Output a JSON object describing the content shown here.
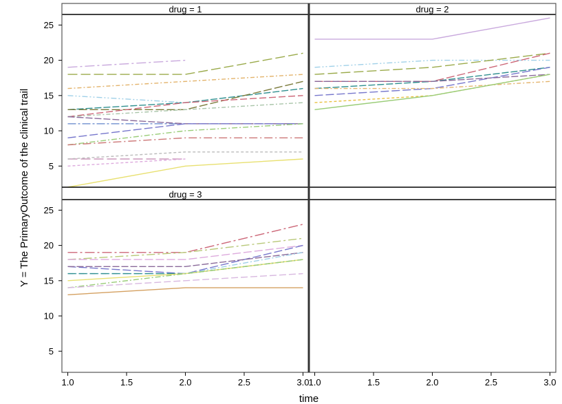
{
  "chart_data": {
    "type": "line",
    "xlabel": "time",
    "ylabel": "Y = The PrimaryOutcome of the clinical trail",
    "xlim": [
      0.95,
      3.05
    ],
    "ylim": [
      2,
      26.5
    ],
    "xticks": [
      "1.0",
      "1.5",
      "2.0",
      "2.5",
      "3.0"
    ],
    "xtick_values": [
      1.0,
      1.5,
      2.0,
      2.5,
      3.0
    ],
    "yticks": [
      "5",
      "10",
      "15",
      "20",
      "25"
    ],
    "ytick_values": [
      5,
      10,
      15,
      20,
      25
    ],
    "x": [
      1.0,
      2.0,
      3.0
    ],
    "panels": [
      {
        "strip": "drug = 1",
        "series": [
          {
            "color": "#c9a9dd",
            "dash": "14,4,3,4",
            "values": [
              19,
              20,
              null
            ]
          },
          {
            "color": "#9aaa4a",
            "dash": "14,5",
            "values": [
              18,
              18,
              21
            ]
          },
          {
            "color": "#e3b36b",
            "dash": "6,3,2,3",
            "values": [
              16,
              17,
              18
            ]
          },
          {
            "color": "#9fd0e8",
            "dash": "8,3,2,3,2,3",
            "values": [
              15,
              14,
              null
            ]
          },
          {
            "color": "#2f8f8f",
            "dash": "10,3",
            "values": [
              13,
              14,
              16
            ]
          },
          {
            "color": "#7a7a3a",
            "dash": "12,4",
            "values": [
              13,
              13,
              17
            ]
          },
          {
            "color": "#cc6677",
            "dash": "10,4",
            "values": [
              12,
              14,
              15
            ]
          },
          {
            "color": "#a8c4a8",
            "dash": "6,3,2,3",
            "values": [
              12,
              13,
              14
            ]
          },
          {
            "color": "#6f8fcf",
            "dash": "12,3,3,3",
            "values": [
              11,
              11,
              11
            ]
          },
          {
            "color": "#8a6a9a",
            "dash": "10,3",
            "values": [
              12,
              11,
              11
            ]
          },
          {
            "color": "#7777cc",
            "dash": "12,4",
            "values": [
              9,
              11,
              11
            ]
          },
          {
            "color": "#99cc77",
            "dash": "8,3,2,3",
            "values": [
              8,
              10,
              11
            ]
          },
          {
            "color": "#cc7777",
            "dash": "12,4,2,4",
            "values": [
              8,
              9,
              9
            ]
          },
          {
            "color": "#cc99bb",
            "dash": "14,5",
            "values": [
              6,
              6,
              null
            ]
          },
          {
            "color": "#bbbbbb",
            "dash": "4,3",
            "values": [
              6,
              7,
              7
            ]
          },
          {
            "color": "#ddaadd",
            "dash": "4,3",
            "values": [
              5,
              6,
              null
            ]
          },
          {
            "color": "#e8e070",
            "dash": "",
            "values": [
              2,
              5,
              6
            ]
          }
        ]
      },
      {
        "strip": "drug = 2",
        "series": [
          {
            "color": "#c9a9dd",
            "dash": "",
            "values": [
              23,
              23,
              26
            ]
          },
          {
            "color": "#9fd0e8",
            "dash": "8,3,2,3,2,3",
            "values": [
              19,
              20,
              20
            ]
          },
          {
            "color": "#9aaa4a",
            "dash": "14,5",
            "values": [
              18,
              19,
              21
            ]
          },
          {
            "color": "#cc6677",
            "dash": "12,4",
            "values": [
              17,
              17,
              21
            ]
          },
          {
            "color": "#2f8f8f",
            "dash": "10,3",
            "values": [
              16,
              17,
              19
            ]
          },
          {
            "color": "#7777cc",
            "dash": "12,4",
            "values": [
              15,
              16,
              19
            ]
          },
          {
            "color": "#e3b36b",
            "dash": "6,3,2,3",
            "values": [
              16,
              16,
              17
            ]
          },
          {
            "color": "#8a6a9a",
            "dash": "10,3",
            "values": [
              17,
              17,
              18
            ]
          },
          {
            "color": "#e8c040",
            "dash": "4,3",
            "values": [
              14,
              15,
              18
            ]
          },
          {
            "color": "#99cc77",
            "dash": "",
            "values": [
              13,
              15,
              18
            ]
          }
        ]
      },
      {
        "strip": "drug = 3",
        "series": [
          {
            "color": "#cc6677",
            "dash": "14,4,3,4",
            "values": [
              19,
              19,
              23
            ]
          },
          {
            "color": "#b8c878",
            "dash": "12,4,3,4",
            "values": [
              18,
              19,
              21
            ]
          },
          {
            "color": "#ddaadd",
            "dash": "12,4",
            "values": [
              18,
              18,
              20
            ]
          },
          {
            "color": "#7777cc",
            "dash": "12,4",
            "values": [
              17,
              16,
              20
            ]
          },
          {
            "color": "#8a6a9a",
            "dash": "10,3",
            "values": [
              17,
              17,
              19
            ]
          },
          {
            "color": "#9fd0e8",
            "dash": "8,3,2,3",
            "values": [
              16,
              16,
              19
            ]
          },
          {
            "color": "#2f8f8f",
            "dash": "12,4",
            "values": [
              16,
              16,
              18
            ]
          },
          {
            "color": "#e8e070",
            "dash": "",
            "values": [
              15,
              16,
              18
            ]
          },
          {
            "color": "#99cc77",
            "dash": "8,3,2,3",
            "values": [
              14,
              16,
              18
            ]
          },
          {
            "color": "#d8b8e0",
            "dash": "10,4",
            "values": [
              14,
              15,
              16
            ]
          },
          {
            "color": "#d4a060",
            "dash": "",
            "values": [
              13,
              14,
              14
            ]
          }
        ]
      },
      {
        "strip": "",
        "series": []
      }
    ]
  }
}
